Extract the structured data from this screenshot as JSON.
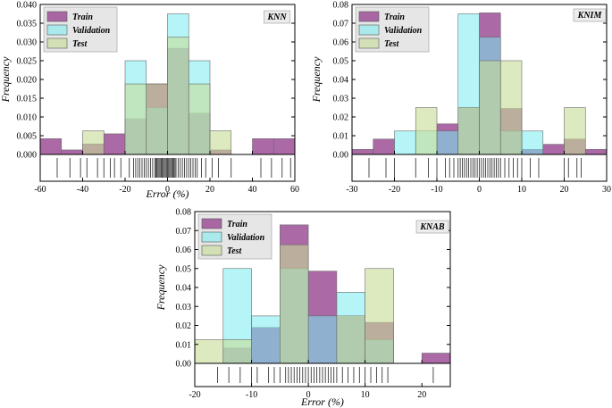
{
  "colors": {
    "Train": "#9c4f96",
    "Validation": "#78ecf0",
    "Test": "#c6dc96"
  },
  "chart_data": [
    {
      "type": "histogram",
      "name": "KNN",
      "label": "KNN",
      "xlabel": "Error (%)",
      "ylabel": "Frequency",
      "xlim": [
        -60,
        60
      ],
      "ylim": [
        0,
        0.04
      ],
      "xticks": [
        -60,
        -40,
        -20,
        0,
        20,
        40,
        60
      ],
      "yticks": [
        0.0,
        0.005,
        0.01,
        0.015,
        0.02,
        0.025,
        0.03,
        0.035,
        0.04
      ],
      "ytick_labels": [
        "0.000",
        "0.005",
        "0.010",
        "0.015",
        "0.020",
        "0.025",
        "0.030",
        "0.035",
        "0.040"
      ],
      "bin_edges": [
        -60,
        -50,
        -40,
        -30,
        -20,
        -10,
        0,
        10,
        20,
        30,
        40,
        50,
        60
      ],
      "series": [
        {
          "name": "Train",
          "values": [
            0.0042,
            0.0012,
            0.0028,
            0.0055,
            0.0095,
            0.0188,
            0.0283,
            0.011,
            0.0012,
            0.0,
            0.0042,
            0.0042
          ]
        },
        {
          "name": "Validation",
          "values": [
            0,
            0,
            0,
            0,
            0.025,
            0.0125,
            0.0375,
            0.025,
            0,
            0,
            0,
            0
          ]
        },
        {
          "name": "Test",
          "values": [
            0,
            0,
            0.0063,
            0,
            0.0188,
            0.0188,
            0.0313,
            0.0188,
            0.0063,
            0,
            0,
            0
          ]
        }
      ],
      "rug": [
        -52,
        -46,
        -41,
        -38,
        -33,
        -30,
        -27,
        -25,
        -22,
        -18,
        -16,
        -15,
        -14,
        -13,
        -12,
        -11,
        -10,
        -9,
        -8,
        -7,
        -6,
        -5.5,
        -5,
        -4.5,
        -4,
        -3.5,
        -3,
        -2.5,
        -2,
        -1.5,
        -1,
        -0.5,
        0,
        0.5,
        1,
        1.5,
        2,
        2.5,
        3,
        3.5,
        4,
        5,
        6,
        7,
        8,
        9,
        10,
        11,
        12,
        13,
        14,
        16,
        18,
        21,
        24,
        30,
        44,
        49,
        54,
        58
      ],
      "legend": [
        "Train",
        "Validation",
        "Test"
      ]
    },
    {
      "type": "histogram",
      "name": "KNIM",
      "label": "KNIM",
      "xlabel": "",
      "ylabel": "Frequency",
      "xlim": [
        -30,
        30
      ],
      "ylim": [
        0,
        0.08
      ],
      "xticks": [
        -30,
        -20,
        -10,
        0,
        10,
        20,
        30
      ],
      "yticks": [
        0.0,
        0.01,
        0.02,
        0.03,
        0.04,
        0.05,
        0.06,
        0.07,
        0.08
      ],
      "ytick_labels": [
        "0.00",
        "0.01",
        "0.02",
        "0.03",
        "0.04",
        "0.05",
        "0.06",
        "0.07",
        "0.08"
      ],
      "bin_edges": [
        -30,
        -25,
        -20,
        -15,
        -10,
        -5,
        0,
        5,
        10,
        15,
        20,
        25,
        30
      ],
      "series": [
        {
          "name": "Train",
          "values": [
            0.0027,
            0.0082,
            0.0,
            0.0,
            0.0163,
            0.0245,
            0.0755,
            0.0245,
            0.0027,
            0.0054,
            0.0082,
            0.0027
          ]
        },
        {
          "name": "Validation",
          "values": [
            0,
            0,
            0.0125,
            0.0125,
            0.0125,
            0.075,
            0.0625,
            0.0125,
            0.0125,
            0,
            0,
            0
          ]
        },
        {
          "name": "Test",
          "values": [
            0,
            0,
            0,
            0.025,
            0,
            0.025,
            0.05,
            0.05,
            0,
            0,
            0.025,
            0
          ]
        }
      ],
      "rug": [
        -26,
        -22,
        -20,
        -15,
        -12,
        -10,
        -8,
        -7,
        -6,
        -5,
        -4.5,
        -4,
        -3.5,
        -3,
        -2.5,
        -2,
        -1.5,
        -1,
        -0.5,
        0,
        0.5,
        1,
        1.5,
        2,
        2.5,
        3,
        3.5,
        4,
        4.5,
        5,
        6,
        7,
        8,
        9,
        10,
        12,
        14,
        20,
        21,
        23,
        24
      ],
      "legend": [
        "Train",
        "Validation",
        "Test"
      ]
    },
    {
      "type": "histogram",
      "name": "KNAB",
      "label": "KNAB",
      "xlabel": "Error (%)",
      "ylabel": "Frequency",
      "xlim": [
        -20,
        25
      ],
      "ylim": [
        0,
        0.08
      ],
      "xticks": [
        -20,
        -10,
        0,
        10,
        20
      ],
      "yticks": [
        0.0,
        0.01,
        0.02,
        0.03,
        0.04,
        0.05,
        0.06,
        0.07,
        0.08
      ],
      "ytick_labels": [
        "0.00",
        "0.01",
        "0.02",
        "0.03",
        "0.04",
        "0.05",
        "0.06",
        "0.07",
        "0.08"
      ],
      "bin_edges": [
        -20,
        -15,
        -10,
        -5,
        0,
        5,
        10,
        15,
        20,
        25
      ],
      "series": [
        {
          "name": "Train",
          "values": [
            0.0,
            0.0081,
            0.0189,
            0.073,
            0.0486,
            0.0243,
            0.0216,
            0.0,
            0.0054
          ]
        },
        {
          "name": "Validation",
          "values": [
            0,
            0.05,
            0.025,
            0.05,
            0.025,
            0.0375,
            0.0125,
            0,
            0
          ]
        },
        {
          "name": "Test",
          "values": [
            0.0125,
            0.0125,
            0,
            0.0625,
            0,
            0.025,
            0.05,
            0,
            0
          ]
        }
      ],
      "rug": [
        -16,
        -14,
        -12,
        -10,
        -9,
        -7,
        -6,
        -5,
        -4,
        -3.5,
        -3,
        -2.5,
        -2,
        -1.5,
        -1,
        -0.5,
        0,
        0.5,
        1,
        1.5,
        2,
        2.5,
        3,
        3.5,
        4,
        4.5,
        5,
        6,
        7,
        8,
        9,
        10,
        11,
        12,
        13,
        14,
        22
      ],
      "legend": [
        "Train",
        "Validation",
        "Test"
      ]
    }
  ]
}
